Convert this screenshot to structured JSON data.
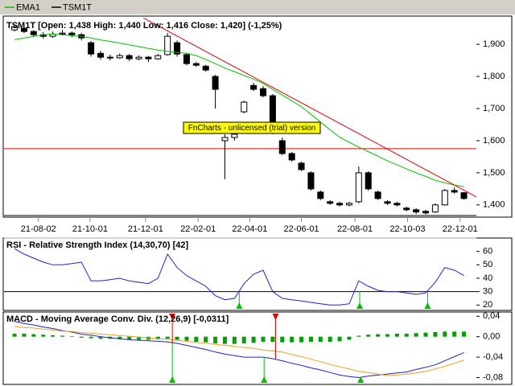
{
  "chart_data": [
    {
      "type": "candlestick",
      "title": "TSM1T [Open: 1,438 High: 1,440 Low: 1,416 Close: 1,420] (-1,25%)",
      "annotation": "FnCharts - unlicensed (trial) version",
      "x": [
        0,
        1,
        2,
        3,
        4,
        5,
        6,
        7,
        8,
        9,
        10,
        11,
        12,
        13,
        14,
        15,
        16,
        17,
        18,
        19,
        20,
        21,
        22,
        23,
        24,
        25,
        26,
        27,
        28,
        29,
        30,
        31,
        32,
        33,
        34,
        35,
        36,
        37,
        38,
        39,
        40,
        41,
        42,
        43,
        44,
        45,
        46,
        47
      ],
      "xlim": [
        -1.1,
        48.3
      ],
      "xticks": [
        {
          "value": 2.5,
          "label": "21-08-02"
        },
        {
          "value": 7.9,
          "label": "21-10-01"
        },
        {
          "value": 13.7,
          "label": "21-12-01"
        },
        {
          "value": 19.2,
          "label": "22-02-01"
        },
        {
          "value": 24.6,
          "label": "22-04-01"
        },
        {
          "value": 30,
          "label": "22-06-01"
        },
        {
          "value": 35.6,
          "label": "22-08-01"
        },
        {
          "value": 41.1,
          "label": "22-10-03"
        },
        {
          "value": 46.6,
          "label": "22-12-01"
        }
      ],
      "ylim": [
        1362,
        1988
      ],
      "yticks": [
        {
          "value": 1400,
          "label": "1,400"
        },
        {
          "value": 1500,
          "label": "1,500"
        },
        {
          "value": 1600,
          "label": "1,600"
        },
        {
          "value": 1700,
          "label": "1,700"
        },
        {
          "value": 1800,
          "label": "1,800"
        },
        {
          "value": 1900,
          "label": "1,900"
        }
      ],
      "series": [
        {
          "name": "TSM1T",
          "color": "#000000",
          "open": [
            1945,
            1950,
            1940,
            1930,
            1925,
            1932,
            1935,
            1930,
            1905,
            1872,
            1860,
            1858,
            1865,
            1855,
            1860,
            1855,
            1868,
            1905,
            1868,
            1840,
            1832,
            1800,
            1600,
            1610,
            1690,
            1772,
            1762,
            1740,
            1600,
            1560,
            1530,
            1500,
            1440,
            1410,
            1405,
            1400,
            1410,
            1500,
            1440,
            1410,
            1405,
            1390,
            1385,
            1380,
            1378,
            1400,
            1445,
            1438
          ],
          "high": [
            1962,
            1955,
            1945,
            1938,
            1940,
            1945,
            1940,
            1935,
            1910,
            1880,
            1868,
            1872,
            1870,
            1866,
            1864,
            1870,
            1935,
            1912,
            1872,
            1845,
            1836,
            1805,
            1620,
            1630,
            1725,
            1780,
            1770,
            1745,
            1610,
            1565,
            1535,
            1505,
            1445,
            1415,
            1410,
            1410,
            1520,
            1505,
            1445,
            1415,
            1410,
            1395,
            1390,
            1385,
            1405,
            1450,
            1455,
            1440
          ],
          "low": [
            1940,
            1935,
            1922,
            1918,
            1920,
            1928,
            1922,
            1912,
            1862,
            1852,
            1850,
            1855,
            1848,
            1850,
            1845,
            1852,
            1865,
            1862,
            1835,
            1830,
            1815,
            1700,
            1480,
            1600,
            1685,
            1755,
            1735,
            1620,
            1555,
            1535,
            1505,
            1445,
            1415,
            1400,
            1395,
            1395,
            1405,
            1445,
            1415,
            1400,
            1395,
            1380,
            1372,
            1370,
            1375,
            1398,
            1435,
            1416
          ],
          "close": [
            1955,
            1940,
            1930,
            1925,
            1932,
            1935,
            1930,
            1920,
            1870,
            1860,
            1860,
            1865,
            1855,
            1860,
            1855,
            1865,
            1925,
            1870,
            1840,
            1835,
            1820,
            1760,
            1610,
            1620,
            1720,
            1760,
            1740,
            1625,
            1560,
            1540,
            1510,
            1450,
            1420,
            1405,
            1400,
            1405,
            1500,
            1450,
            1420,
            1405,
            1400,
            1385,
            1378,
            1375,
            1400,
            1445,
            1440,
            1420
          ]
        },
        {
          "name": "EMA1",
          "color": "#00c000",
          "values": [
            1915,
            1920,
            1925,
            1930,
            1932,
            1930,
            1927,
            1925,
            1920,
            1914,
            1909,
            1904,
            1898,
            1893,
            1887,
            1882,
            1878,
            1875,
            1872,
            1865,
            1853,
            1840,
            1826,
            1815,
            1803,
            1792,
            1778,
            1760,
            1742,
            1724,
            1706,
            1682,
            1658,
            1634,
            1611,
            1595,
            1580,
            1566,
            1552,
            1537,
            1525,
            1512,
            1500,
            1489,
            1477,
            1469,
            1462,
            1457
          ]
        }
      ],
      "trendline": {
        "color": "#e00000",
        "x": [
          13.5,
          48.3
        ],
        "values": [
          1982,
          1425
        ]
      },
      "hlines": [
        {
          "value": 1575,
          "color": "#e00000"
        },
        {
          "value": 1367,
          "color": "#000000"
        }
      ]
    },
    {
      "type": "line",
      "title": "RSI - Relative Strength Index (14,30,70) [42]",
      "ylim": [
        16,
        70
      ],
      "yticks": [
        20,
        30,
        40,
        50,
        60
      ],
      "levels": [
        70,
        30
      ],
      "series": [
        {
          "color": "#2020d0",
          "values": [
            62,
            58,
            55,
            52,
            50,
            50,
            51,
            52,
            38,
            38,
            39,
            40,
            38,
            37,
            36,
            40,
            58,
            48,
            42,
            38,
            34,
            27,
            24,
            25,
            36,
            43,
            46,
            30,
            25,
            24,
            23,
            22,
            21,
            20,
            20,
            21,
            38,
            34,
            31,
            30,
            30,
            29,
            28,
            29,
            37,
            48,
            46,
            42
          ]
        }
      ],
      "buy_signals": [
        23.5,
        36.1,
        43.2
      ]
    },
    {
      "type": "macd",
      "title": "MACD - Moving Average Conv. Div. (12,26,9) [-0,0311]",
      "ylim": [
        -0.0933,
        0.0483
      ],
      "yticks": [
        {
          "value": -0.08,
          "label": "-0,08"
        },
        {
          "value": -0.04,
          "label": "-0,04"
        },
        {
          "value": 0,
          "label": "0,00"
        },
        {
          "value": 0.04,
          "label": "0,04"
        }
      ],
      "histogram": {
        "color": "#00a000",
        "values": [
          0.006,
          0.006,
          0.005,
          0.004,
          0.003,
          0.002,
          0.001,
          -0.002,
          -0.003,
          -0.004,
          -0.004,
          -0.005,
          -0.006,
          -0.006,
          -0.006,
          -0.005,
          -0.004,
          -0.006,
          -0.008,
          -0.01,
          -0.011,
          -0.013,
          -0.014,
          -0.014,
          -0.013,
          -0.012,
          -0.01,
          -0.01,
          -0.011,
          -0.011,
          -0.011,
          -0.01,
          -0.01,
          -0.01,
          -0.009,
          -0.006,
          0.002,
          0.004,
          0.005,
          0.005,
          0.006,
          0.006,
          0.007,
          0.008,
          0.009,
          0.01,
          0.01,
          0.01
        ]
      },
      "series": [
        {
          "color": "#2020d0",
          "values": [
            0.03,
            0.026,
            0.023,
            0.019,
            0.016,
            0.012,
            0.009,
            0.005,
            0.003,
            0,
            -0.002,
            -0.004,
            -0.006,
            -0.007,
            -0.008,
            -0.009,
            -0.01,
            -0.013,
            -0.017,
            -0.021,
            -0.025,
            -0.03,
            -0.034,
            -0.037,
            -0.04,
            -0.04,
            -0.04,
            -0.043,
            -0.047,
            -0.052,
            -0.056,
            -0.061,
            -0.065,
            -0.07,
            -0.075,
            -0.078,
            -0.08,
            -0.077,
            -0.075,
            -0.073,
            -0.071,
            -0.069,
            -0.064,
            -0.06,
            -0.055,
            -0.047,
            -0.039,
            -0.031
          ]
        },
        {
          "color": "#f0a020",
          "values": [
            0.02,
            0.018,
            0.017,
            0.015,
            0.013,
            0.011,
            0.01,
            0.008,
            0.007,
            0.005,
            0.004,
            0.002,
            0.001,
            -0.001,
            -0.002,
            -0.004,
            -0.005,
            -0.007,
            -0.009,
            -0.011,
            -0.013,
            -0.015,
            -0.017,
            -0.019,
            -0.021,
            -0.023,
            -0.026,
            -0.028,
            -0.03,
            -0.035,
            -0.039,
            -0.044,
            -0.049,
            -0.054,
            -0.059,
            -0.063,
            -0.068,
            -0.07,
            -0.073,
            -0.076,
            -0.075,
            -0.073,
            -0.071,
            -0.068,
            -0.063,
            -0.058,
            -0.052,
            -0.046
          ]
        }
      ],
      "sell_signals": [
        16.5,
        27.3
      ],
      "buy_signals": [
        16.5,
        26.1,
        36.2
      ]
    }
  ]
}
